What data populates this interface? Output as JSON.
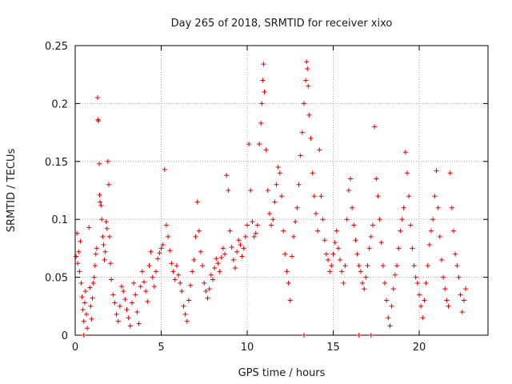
{
  "chart_data": {
    "type": "scatter",
    "title": "Day 265 of 2018, SRMTID for receiver xixo",
    "xlabel": "GPS time / hours",
    "ylabel": "SRMTID / TECUs",
    "xlim": [
      0,
      24
    ],
    "ylim": [
      0,
      0.25
    ],
    "xticks": [
      0,
      5,
      10,
      15,
      20
    ],
    "yticks": [
      0,
      0.05,
      0.1,
      0.15,
      0.2,
      0.25
    ],
    "xtick_labels": [
      "0",
      "5",
      "10",
      "15",
      "20"
    ],
    "ytick_labels": [
      "0",
      "0.05",
      "0.1",
      "0.15",
      "0.2",
      "0.25"
    ],
    "grid": true,
    "legend": "none",
    "marker": "plus",
    "color": "#e00000",
    "series": [
      {
        "points": [
          [
            0.05,
            0.068
          ],
          [
            0.1,
            0.088
          ],
          [
            0.15,
            0.062
          ],
          [
            0.2,
            0.072
          ],
          [
            0.25,
            0.055
          ],
          [
            0.3,
            0.081
          ],
          [
            0.35,
            0.045
          ],
          [
            0.4,
            0.033
          ],
          [
            0.45,
            0.022
          ],
          [
            0.5,
            0.012
          ],
          [
            0.55,
            0.028
          ],
          [
            0.6,
            0.038
          ],
          [
            0.65,
            0.018
          ],
          [
            0.7,
            0.006
          ],
          [
            0.8,
            0.093
          ],
          [
            0.85,
            0.041
          ],
          [
            0.9,
            0.025
          ],
          [
            0.95,
            0.014
          ],
          [
            1.0,
            0.032
          ],
          [
            1.05,
            0.045
          ],
          [
            1.1,
            0.05
          ],
          [
            1.15,
            0.06
          ],
          [
            1.2,
            0.07
          ],
          [
            1.25,
            0.075
          ],
          [
            1.3,
            0.205
          ],
          [
            1.32,
            0.186
          ],
          [
            1.35,
            0.185
          ],
          [
            1.4,
            0.148
          ],
          [
            1.42,
            0.121
          ],
          [
            1.45,
            0.115
          ],
          [
            1.5,
            0.112
          ],
          [
            1.55,
            0.1
          ],
          [
            1.6,
            0.085
          ],
          [
            1.65,
            0.078
          ],
          [
            1.7,
            0.065
          ],
          [
            1.75,
            0.072
          ],
          [
            1.8,
            0.098
          ],
          [
            1.85,
            0.092
          ],
          [
            1.9,
            0.15
          ],
          [
            1.95,
            0.13
          ],
          [
            2.0,
            0.085
          ],
          [
            2.05,
            0.062
          ],
          [
            2.1,
            0.048
          ],
          [
            2.2,
            0.035
          ],
          [
            2.3,
            0.028
          ],
          [
            2.4,
            0.018
          ],
          [
            2.5,
            0.012
          ],
          [
            2.6,
            0.025
          ],
          [
            2.7,
            0.042
          ],
          [
            2.8,
            0.038
          ],
          [
            2.9,
            0.031
          ],
          [
            3.0,
            0.022
          ],
          [
            3.1,
            0.015
          ],
          [
            3.2,
            0.008
          ],
          [
            3.3,
            0.028
          ],
          [
            3.4,
            0.045
          ],
          [
            3.5,
            0.035
          ],
          [
            3.6,
            0.02
          ],
          [
            3.7,
            0.01
          ],
          [
            3.8,
            0.042
          ],
          [
            3.9,
            0.055
          ],
          [
            4.0,
            0.046
          ],
          [
            4.1,
            0.038
          ],
          [
            4.2,
            0.029
          ],
          [
            4.3,
            0.06
          ],
          [
            4.4,
            0.072
          ],
          [
            4.5,
            0.05
          ],
          [
            4.6,
            0.042
          ],
          [
            4.7,
            0.055
          ],
          [
            4.8,
            0.066
          ],
          [
            4.9,
            0.071
          ],
          [
            5.0,
            0.075
          ],
          [
            5.1,
            0.078
          ],
          [
            5.2,
            0.143
          ],
          [
            5.3,
            0.095
          ],
          [
            5.4,
            0.085
          ],
          [
            5.5,
            0.073
          ],
          [
            5.6,
            0.062
          ],
          [
            5.7,
            0.055
          ],
          [
            5.8,
            0.048
          ],
          [
            5.9,
            0.06
          ],
          [
            6.0,
            0.052
          ],
          [
            6.1,
            0.045
          ],
          [
            6.2,
            0.038
          ],
          [
            6.3,
            0.025
          ],
          [
            6.4,
            0.018
          ],
          [
            6.5,
            0.012
          ],
          [
            6.6,
            0.03
          ],
          [
            6.7,
            0.043
          ],
          [
            6.8,
            0.055
          ],
          [
            6.9,
            0.065
          ],
          [
            7.0,
            0.085
          ],
          [
            7.1,
            0.115
          ],
          [
            7.2,
            0.09
          ],
          [
            7.3,
            0.072
          ],
          [
            7.4,
            0.06
          ],
          [
            7.5,
            0.045
          ],
          [
            7.6,
            0.038
          ],
          [
            7.7,
            0.032
          ],
          [
            7.8,
            0.04
          ],
          [
            7.9,
            0.052
          ],
          [
            8.0,
            0.048
          ],
          [
            8.1,
            0.058
          ],
          [
            8.2,
            0.066
          ],
          [
            8.3,
            0.062
          ],
          [
            8.4,
            0.055
          ],
          [
            8.5,
            0.067
          ],
          [
            8.6,
            0.075
          ],
          [
            8.7,
            0.07
          ],
          [
            8.8,
            0.138
          ],
          [
            8.9,
            0.125
          ],
          [
            9.0,
            0.09
          ],
          [
            9.1,
            0.076
          ],
          [
            9.2,
            0.065
          ],
          [
            9.3,
            0.058
          ],
          [
            9.4,
            0.072
          ],
          [
            9.5,
            0.082
          ],
          [
            9.6,
            0.078
          ],
          [
            9.7,
            0.068
          ],
          [
            9.8,
            0.075
          ],
          [
            9.9,
            0.085
          ],
          [
            10.0,
            0.095
          ],
          [
            10.1,
            0.165
          ],
          [
            10.2,
            0.125
          ],
          [
            10.3,
            0.098
          ],
          [
            10.4,
            0.085
          ],
          [
            10.5,
            0.088
          ],
          [
            10.6,
            0.095
          ],
          [
            10.7,
            0.165
          ],
          [
            10.8,
            0.183
          ],
          [
            10.85,
            0.2
          ],
          [
            10.9,
            0.22
          ],
          [
            10.95,
            0.234
          ],
          [
            11.0,
            0.21
          ],
          [
            11.1,
            0.16
          ],
          [
            11.2,
            0.125
          ],
          [
            11.3,
            0.105
          ],
          [
            11.4,
            0.095
          ],
          [
            11.5,
            0.1
          ],
          [
            11.6,
            0.115
          ],
          [
            11.7,
            0.13
          ],
          [
            11.8,
            0.145
          ],
          [
            11.9,
            0.14
          ],
          [
            12.0,
            0.12
          ],
          [
            12.1,
            0.09
          ],
          [
            12.2,
            0.07
          ],
          [
            12.3,
            0.055
          ],
          [
            12.4,
            0.045
          ],
          [
            12.5,
            0.03
          ],
          [
            12.6,
            0.068
          ],
          [
            12.7,
            0.085
          ],
          [
            12.8,
            0.098
          ],
          [
            12.9,
            0.11
          ],
          [
            13.0,
            0.13
          ],
          [
            13.1,
            0.155
          ],
          [
            13.2,
            0.175
          ],
          [
            13.3,
            0.2
          ],
          [
            13.4,
            0.22
          ],
          [
            13.45,
            0.236
          ],
          [
            13.5,
            0.23
          ],
          [
            13.55,
            0.215
          ],
          [
            13.6,
            0.19
          ],
          [
            13.7,
            0.17
          ],
          [
            13.8,
            0.14
          ],
          [
            13.9,
            0.12
          ],
          [
            14.0,
            0.105
          ],
          [
            14.1,
            0.09
          ],
          [
            14.2,
            0.16
          ],
          [
            14.3,
            0.12
          ],
          [
            14.4,
            0.1
          ],
          [
            14.5,
            0.082
          ],
          [
            14.6,
            0.07
          ],
          [
            14.7,
            0.065
          ],
          [
            14.8,
            0.055
          ],
          [
            14.9,
            0.06
          ],
          [
            15.0,
            0.07
          ],
          [
            15.1,
            0.08
          ],
          [
            15.2,
            0.09
          ],
          [
            15.3,
            0.075
          ],
          [
            15.4,
            0.065
          ],
          [
            15.5,
            0.055
          ],
          [
            15.6,
            0.045
          ],
          [
            15.7,
            0.06
          ],
          [
            15.8,
            0.1
          ],
          [
            15.9,
            0.125
          ],
          [
            16.0,
            0.135
          ],
          [
            16.1,
            0.11
          ],
          [
            16.2,
            0.095
          ],
          [
            16.3,
            0.082
          ],
          [
            16.4,
            0.07
          ],
          [
            16.5,
            0.06
          ],
          [
            16.6,
            0.055
          ],
          [
            16.7,
            0.045
          ],
          [
            16.8,
            0.04
          ],
          [
            16.9,
            0.05
          ],
          [
            17.0,
            0.06
          ],
          [
            17.1,
            0.075
          ],
          [
            17.2,
            0.085
          ],
          [
            17.3,
            0.095
          ],
          [
            17.4,
            0.18
          ],
          [
            17.5,
            0.135
          ],
          [
            17.6,
            0.12
          ],
          [
            17.7,
            0.1
          ],
          [
            17.8,
            0.08
          ],
          [
            17.9,
            0.06
          ],
          [
            18.0,
            0.045
          ],
          [
            18.1,
            0.03
          ],
          [
            18.2,
            0.015
          ],
          [
            18.3,
            0.008
          ],
          [
            18.4,
            0.025
          ],
          [
            18.5,
            0.04
          ],
          [
            18.6,
            0.052
          ],
          [
            18.7,
            0.06
          ],
          [
            18.8,
            0.075
          ],
          [
            18.9,
            0.09
          ],
          [
            19.0,
            0.1
          ],
          [
            19.1,
            0.11
          ],
          [
            19.2,
            0.158
          ],
          [
            19.3,
            0.14
          ],
          [
            19.4,
            0.12
          ],
          [
            19.5,
            0.095
          ],
          [
            19.6,
            0.075
          ],
          [
            19.7,
            0.06
          ],
          [
            19.8,
            0.05
          ],
          [
            19.9,
            0.045
          ],
          [
            20.0,
            0.035
          ],
          [
            20.1,
            0.025
          ],
          [
            20.2,
            0.015
          ],
          [
            20.3,
            0.03
          ],
          [
            20.4,
            0.045
          ],
          [
            20.5,
            0.06
          ],
          [
            20.6,
            0.078
          ],
          [
            20.7,
            0.09
          ],
          [
            20.8,
            0.1
          ],
          [
            20.9,
            0.12
          ],
          [
            21.0,
            0.142
          ],
          [
            21.1,
            0.11
          ],
          [
            21.2,
            0.085
          ],
          [
            21.3,
            0.065
          ],
          [
            21.4,
            0.05
          ],
          [
            21.5,
            0.04
          ],
          [
            21.6,
            0.03
          ],
          [
            21.7,
            0.025
          ],
          [
            21.8,
            0.14
          ],
          [
            21.9,
            0.11
          ],
          [
            22.0,
            0.09
          ],
          [
            22.1,
            0.07
          ],
          [
            22.2,
            0.06
          ],
          [
            22.3,
            0.05
          ],
          [
            22.4,
            0.035
          ],
          [
            22.5,
            0.02
          ],
          [
            22.6,
            0.03
          ],
          [
            22.7,
            0.04
          ],
          [
            0.5,
            0.0
          ],
          [
            13.3,
            0.0
          ],
          [
            16.5,
            0.0
          ],
          [
            17.2,
            0.0
          ]
        ]
      }
    ]
  }
}
